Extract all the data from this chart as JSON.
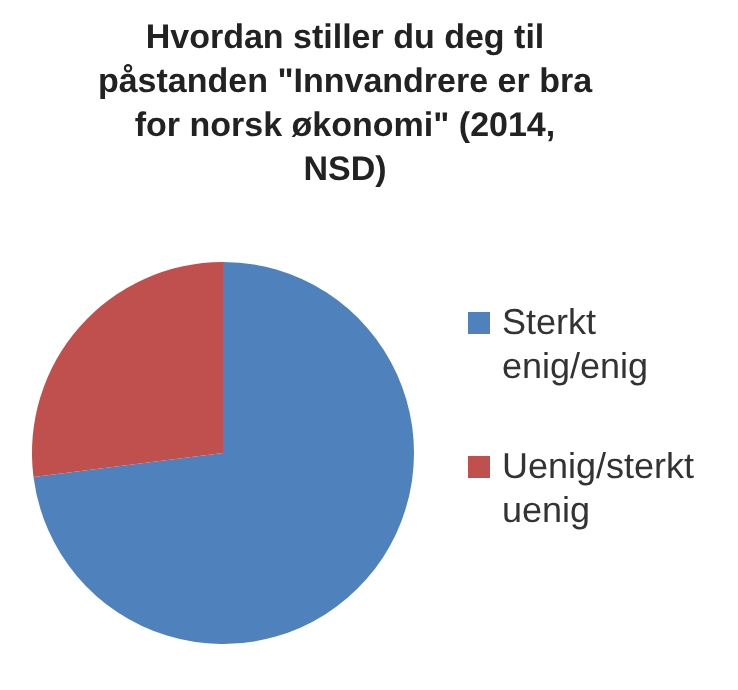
{
  "chart_data": {
    "type": "pie",
    "title": "Hvordan stiller du deg til påstanden \"Innvandrere er bra for norsk økonomi\" (2014, NSD)",
    "categories": [
      "Sterkt enig/enig",
      "Uenig/sterkt uenig"
    ],
    "values": [
      73,
      27
    ],
    "colors": [
      "#4f81bd",
      "#c0504d"
    ],
    "legend": "right"
  }
}
